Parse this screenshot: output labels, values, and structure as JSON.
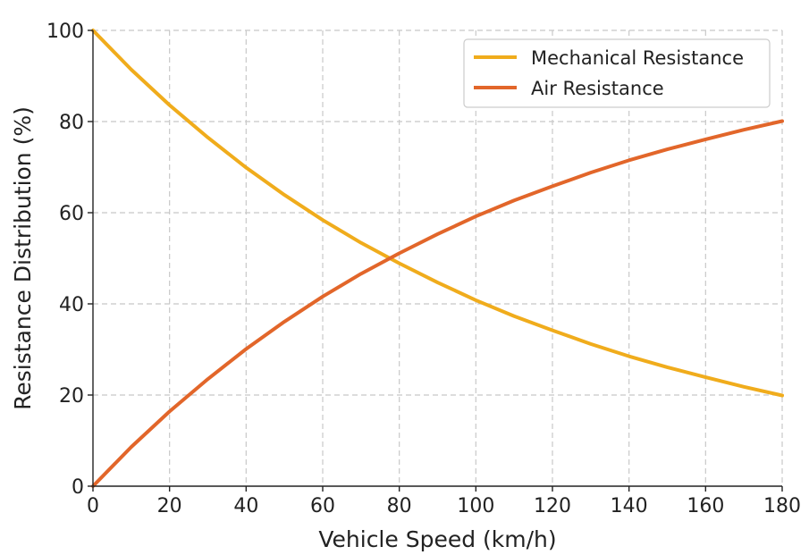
{
  "chart_data": {
    "type": "line",
    "title": "",
    "xlabel": "Vehicle Speed (km/h)",
    "ylabel": "Resistance Distribution (%)",
    "xlim": [
      0,
      180
    ],
    "ylim": [
      0,
      100
    ],
    "xticks": [
      "0",
      "20",
      "40",
      "60",
      "80",
      "100",
      "120",
      "140",
      "160",
      "180"
    ],
    "yticks": [
      "0",
      "20",
      "40",
      "60",
      "80",
      "100"
    ],
    "grid": true,
    "legend_position": "top-right",
    "x": [
      0,
      10,
      20,
      30,
      40,
      50,
      60,
      70,
      80,
      90,
      100,
      110,
      120,
      130,
      140,
      150,
      160,
      170,
      180
    ],
    "series": [
      {
        "name": "Mechanical Resistance",
        "color": "#f0ac1c",
        "values": [
          100,
          91.4,
          83.6,
          76.5,
          69.9,
          63.9,
          58.4,
          53.4,
          48.9,
          44.7,
          40.8,
          37.3,
          34.2,
          31.2,
          28.5,
          26.1,
          23.9,
          21.8,
          19.9
        ]
      },
      {
        "name": "Air Resistance",
        "color": "#e2662a",
        "values": [
          0,
          8.6,
          16.4,
          23.5,
          30.1,
          36.1,
          41.6,
          46.6,
          51.1,
          55.3,
          59.2,
          62.7,
          65.8,
          68.8,
          71.5,
          73.9,
          76.1,
          78.2,
          80.1
        ]
      }
    ]
  }
}
